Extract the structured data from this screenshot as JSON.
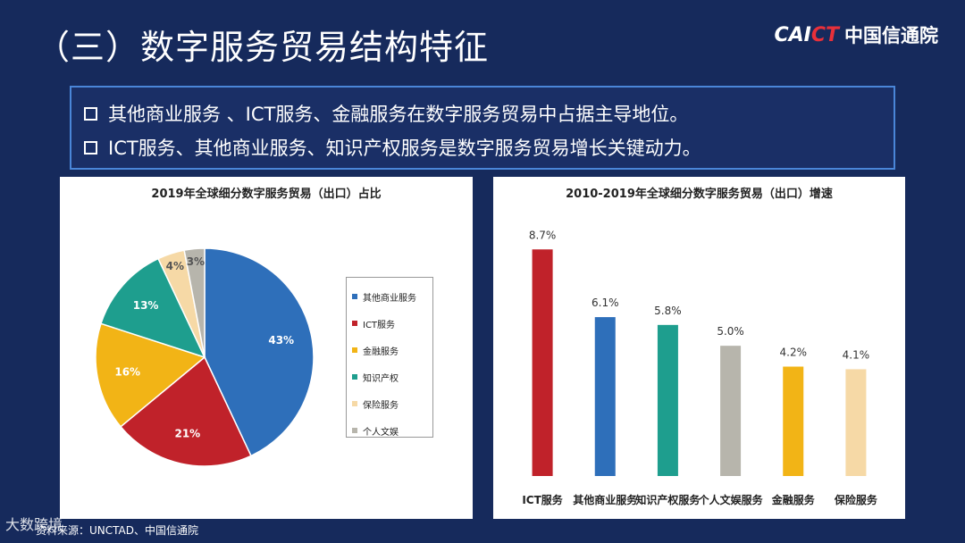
{
  "header": {
    "title": "（三）数字服务贸易结构特征",
    "brand_mark_main": "CAI",
    "brand_mark_accent": "CT",
    "brand_cn": "中国信通院"
  },
  "bullets": [
    "其他商业服务 、ICT服务、金融服务在数字服务贸易中占据主导地位。",
    "ICT服务、其他商业服务、知识产权服务是数字服务贸易增长关键动力。"
  ],
  "source": "资料来源：UNCTAD、中国信通院",
  "watermark": "大数跨境",
  "colors": {
    "background": "#162a5c",
    "other_business": "#2e6fba",
    "ict": "#c0222a",
    "finance": "#f2b416",
    "ip": "#1e9e8e",
    "insurance": "#f6d9a6",
    "personal": "#b7b5ac"
  },
  "chart_data": [
    {
      "type": "pie",
      "title": "2019年全球细分数字服务贸易（出口）占比",
      "legend_position": "right",
      "slices": [
        {
          "name": "其他商业服务",
          "value": 43,
          "label": "43%",
          "color": "#2e6fba"
        },
        {
          "name": "ICT服务",
          "value": 21,
          "label": "21%",
          "color": "#c0222a"
        },
        {
          "name": "金融服务",
          "value": 16,
          "label": "16%",
          "color": "#f2b416"
        },
        {
          "name": "知识产权",
          "value": 13,
          "label": "13%",
          "color": "#1e9e8e"
        },
        {
          "name": "保险服务",
          "value": 4,
          "label": "4%",
          "color": "#f6d9a6"
        },
        {
          "name": "个人文娱",
          "value": 3,
          "label": "3%",
          "color": "#b7b5ac"
        }
      ]
    },
    {
      "type": "bar",
      "title": "2010-2019年全球细分数字服务贸易（出口）增速",
      "categories": [
        "ICT服务",
        "其他商业服务",
        "知识产权服务",
        "个人文娱服务",
        "金融服务",
        "保险服务"
      ],
      "values": [
        8.7,
        6.1,
        5.8,
        5.0,
        4.2,
        4.1
      ],
      "labels": [
        "8.7%",
        "6.1%",
        "5.8%",
        "5.0%",
        "4.2%",
        "4.1%"
      ],
      "colors": [
        "#c0222a",
        "#2e6fba",
        "#1e9e8e",
        "#b7b5ac",
        "#f2b416",
        "#f6d9a6"
      ],
      "ylim": [
        0,
        9.6
      ],
      "grid": false
    }
  ]
}
